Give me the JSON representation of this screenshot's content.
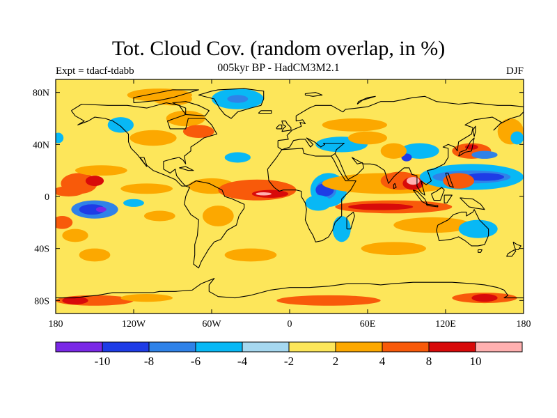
{
  "title": "Tot. Cloud Cov. (random overlap, in %)",
  "subtitle": "005kyr BP - HadCM3M2.1",
  "left_label": "Expt = tdacf-tdabb",
  "right_label": "DJF",
  "colors": {
    "background": "#ffffff",
    "base_field": "#fde65a",
    "coast": "#000000"
  },
  "map": {
    "projection": "cylindrical-equidistant",
    "lon_range": [
      -180,
      180
    ],
    "lat_range": [
      -90,
      90
    ],
    "x_ticks": [
      {
        "lon": -180,
        "label": "180"
      },
      {
        "lon": -120,
        "label": "120W"
      },
      {
        "lon": -60,
        "label": "60W"
      },
      {
        "lon": 0,
        "label": "0"
      },
      {
        "lon": 60,
        "label": "60E"
      },
      {
        "lon": 120,
        "label": "120E"
      },
      {
        "lon": 180,
        "label": "180"
      }
    ],
    "y_ticks": [
      {
        "lat": 80,
        "label": "80N"
      },
      {
        "lat": 40,
        "label": "40N"
      },
      {
        "lat": 0,
        "label": "0"
      },
      {
        "lat": -40,
        "label": "40S"
      },
      {
        "lat": -80,
        "label": "80S"
      }
    ]
  },
  "colorbar": {
    "colors": [
      "#7a28e6",
      "#1e3ce6",
      "#2f82e8",
      "#08b8f5",
      "#a6d8f0",
      "#fde65a",
      "#fca800",
      "#f85a0a",
      "#d80a0a",
      "#ffb0b0"
    ],
    "labels": [
      "-10",
      "-8",
      "-6",
      "-4",
      "-2",
      "2",
      "4",
      "8",
      "10"
    ]
  },
  "chart_data": {
    "type": "heatmap",
    "title": "Tot. Cloud Cov. (random overlap, in %)",
    "subtitle": "005kyr BP - HadCM3M2.1",
    "levels": [
      -10,
      -8,
      -6,
      -4,
      -2,
      2,
      4,
      8,
      10
    ],
    "features": [
      {
        "lon": -162,
        "lat": 10,
        "rx": 14,
        "ry": 8,
        "level": 3
      },
      {
        "lon": -150,
        "lat": 12,
        "rx": 7,
        "ry": 4,
        "level": 4
      },
      {
        "lon": -170,
        "lat": 4,
        "rx": 12,
        "ry": 4,
        "level": 3
      },
      {
        "lon": -110,
        "lat": 6,
        "rx": 20,
        "ry": 4,
        "level": 2
      },
      {
        "lon": -150,
        "lat": -10,
        "rx": 18,
        "ry": 7,
        "level": -3
      },
      {
        "lon": -152,
        "lat": -10,
        "rx": 10,
        "ry": 4,
        "level": -4
      },
      {
        "lon": -145,
        "lat": -10,
        "rx": 4,
        "ry": 2,
        "level": -5
      },
      {
        "lon": -175,
        "lat": -20,
        "rx": 8,
        "ry": 5,
        "level": 3
      },
      {
        "lon": -165,
        "lat": -30,
        "rx": 10,
        "ry": 5,
        "level": 2
      },
      {
        "lon": -120,
        "lat": -5,
        "rx": 8,
        "ry": 3,
        "level": -2
      },
      {
        "lon": -100,
        "lat": -15,
        "rx": 12,
        "ry": 4,
        "level": 2
      },
      {
        "lon": -145,
        "lat": 20,
        "rx": 20,
        "ry": 4,
        "level": 2
      },
      {
        "lon": -60,
        "lat": 8,
        "rx": 18,
        "ry": 6,
        "level": 2
      },
      {
        "lon": -55,
        "lat": -15,
        "rx": 12,
        "ry": 8,
        "level": 2
      },
      {
        "lon": -40,
        "lat": 30,
        "rx": 10,
        "ry": 4,
        "level": -2
      },
      {
        "lon": -25,
        "lat": 5,
        "rx": 30,
        "ry": 8,
        "level": 3
      },
      {
        "lon": -15,
        "lat": 2,
        "rx": 14,
        "ry": 3,
        "level": 4
      },
      {
        "lon": -20,
        "lat": 2,
        "rx": 6,
        "ry": 1.2,
        "level": 5
      },
      {
        "lon": 30,
        "lat": 5,
        "rx": 14,
        "ry": 13,
        "level": -2
      },
      {
        "lon": 28,
        "lat": 5,
        "rx": 8,
        "ry": 7,
        "level": -3
      },
      {
        "lon": 27,
        "lat": 5,
        "rx": 7,
        "ry": 5,
        "level": -4
      },
      {
        "lon": 22,
        "lat": -5,
        "rx": 10,
        "ry": 6,
        "level": -2
      },
      {
        "lon": 40,
        "lat": -25,
        "rx": 7,
        "ry": 10,
        "level": -2
      },
      {
        "lon": 75,
        "lat": 10,
        "rx": 50,
        "ry": 8,
        "level": 2
      },
      {
        "lon": 80,
        "lat": -8,
        "rx": 45,
        "ry": 5,
        "level": 3
      },
      {
        "lon": 70,
        "lat": -8,
        "rx": 25,
        "ry": 2.5,
        "level": 4
      },
      {
        "lon": 85,
        "lat": 12,
        "rx": 15,
        "ry": 7,
        "level": 3
      },
      {
        "lon": 95,
        "lat": 10,
        "rx": 8,
        "ry": 5,
        "level": 4
      },
      {
        "lon": 95,
        "lat": 12,
        "rx": 5,
        "ry": 3,
        "level": 5
      },
      {
        "lon": 140,
        "lat": 15,
        "rx": 40,
        "ry": 10,
        "level": -2
      },
      {
        "lon": 140,
        "lat": 15,
        "rx": 30,
        "ry": 5,
        "level": -3
      },
      {
        "lon": 150,
        "lat": 15,
        "rx": 15,
        "ry": 3,
        "level": -4
      },
      {
        "lon": 130,
        "lat": 12,
        "rx": 12,
        "ry": 6,
        "level": 3
      },
      {
        "lon": 140,
        "lat": 35,
        "rx": 15,
        "ry": 6,
        "level": 3
      },
      {
        "lon": 140,
        "lat": 38,
        "rx": 5,
        "ry": 2,
        "level": 4
      },
      {
        "lon": 150,
        "lat": 32,
        "rx": 10,
        "ry": 3,
        "level": -3
      },
      {
        "lon": 100,
        "lat": 35,
        "rx": 15,
        "ry": 6,
        "level": -2
      },
      {
        "lon": 90,
        "lat": 30,
        "rx": 4,
        "ry": 3,
        "level": -4
      },
      {
        "lon": 80,
        "lat": 35,
        "rx": 10,
        "ry": 6,
        "level": 2
      },
      {
        "lon": 40,
        "lat": 40,
        "rx": 20,
        "ry": 6,
        "level": -2
      },
      {
        "lon": 60,
        "lat": 45,
        "rx": 15,
        "ry": 5,
        "level": 2
      },
      {
        "lon": 50,
        "lat": 55,
        "rx": 25,
        "ry": 5,
        "level": 2
      },
      {
        "lon": -40,
        "lat": 75,
        "rx": 20,
        "ry": 8,
        "level": -2
      },
      {
        "lon": -40,
        "lat": 75,
        "rx": 8,
        "ry": 3,
        "level": -3
      },
      {
        "lon": -90,
        "lat": 75,
        "rx": 15,
        "ry": 5,
        "level": 2
      },
      {
        "lon": -80,
        "lat": 60,
        "rx": 15,
        "ry": 6,
        "level": 2
      },
      {
        "lon": -70,
        "lat": 50,
        "rx": 12,
        "ry": 5,
        "level": 3
      },
      {
        "lon": -130,
        "lat": 55,
        "rx": 10,
        "ry": 6,
        "level": -2
      },
      {
        "lon": -105,
        "lat": 45,
        "rx": 18,
        "ry": 6,
        "level": 2
      },
      {
        "lon": 170,
        "lat": 50,
        "rx": 10,
        "ry": 10,
        "level": 2
      },
      {
        "lon": 175,
        "lat": 45,
        "rx": 5,
        "ry": 5,
        "level": -2
      },
      {
        "lon": -178,
        "lat": 45,
        "rx": 4,
        "ry": 4,
        "level": -2
      },
      {
        "lon": 110,
        "lat": -22,
        "rx": 30,
        "ry": 6,
        "level": 2
      },
      {
        "lon": 145,
        "lat": -25,
        "rx": 15,
        "ry": 7,
        "level": -2
      },
      {
        "lon": -150,
        "lat": -45,
        "rx": 12,
        "ry": 5,
        "level": 2
      },
      {
        "lon": -30,
        "lat": -45,
        "rx": 20,
        "ry": 5,
        "level": 2
      },
      {
        "lon": 80,
        "lat": -40,
        "rx": 25,
        "ry": 5,
        "level": 2
      },
      {
        "lon": -100,
        "lat": 78,
        "rx": 25,
        "ry": 5,
        "level": 2
      },
      {
        "lon": -150,
        "lat": -80,
        "rx": 30,
        "ry": 4,
        "level": 3
      },
      {
        "lon": -165,
        "lat": -80,
        "rx": 10,
        "ry": 3,
        "level": 4
      },
      {
        "lon": 30,
        "lat": -80,
        "rx": 40,
        "ry": 4,
        "level": 3
      },
      {
        "lon": 150,
        "lat": -78,
        "rx": 25,
        "ry": 4,
        "level": 3
      },
      {
        "lon": 150,
        "lat": -78,
        "rx": 10,
        "ry": 3,
        "level": 4
      },
      {
        "lon": -110,
        "lat": -78,
        "rx": 20,
        "ry": 3,
        "level": 2
      }
    ]
  }
}
